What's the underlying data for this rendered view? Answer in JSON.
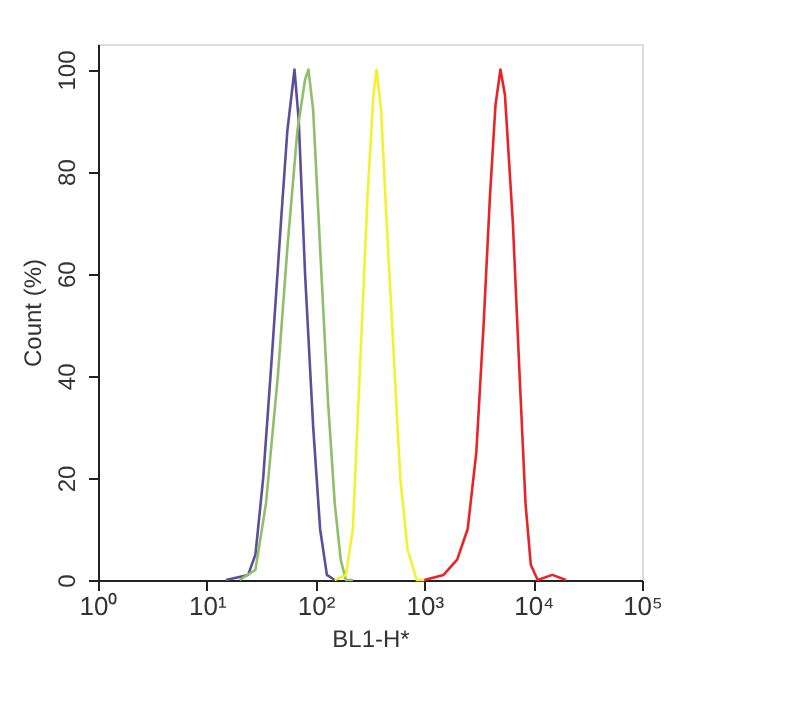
{
  "chart_data": {
    "type": "line",
    "xlabel": "BL1-H*",
    "ylabel": "Count (%)",
    "log": "x",
    "xlim": [
      1,
      100000
    ],
    "ylim": [
      0,
      105
    ],
    "xticks": [
      {
        "value": 1,
        "label": "10⁰"
      },
      {
        "value": 10,
        "label": "10¹"
      },
      {
        "value": 100,
        "label": "10²"
      },
      {
        "value": 1000,
        "label": "10³"
      },
      {
        "value": 10000,
        "label": "10⁴"
      },
      {
        "value": 100000,
        "label": "10⁵"
      }
    ],
    "yticks": [
      0,
      20,
      40,
      60,
      80,
      100
    ],
    "grid": false,
    "marker": "none",
    "line_style": "solid",
    "series": [
      {
        "color": "#5b4f9a",
        "x": [
          15,
          24,
          28,
          33,
          40,
          48,
          55,
          64,
          70,
          80,
          95,
          110,
          127,
          150
        ],
        "values": [
          0,
          1,
          5,
          20,
          45,
          70,
          88,
          100,
          90,
          60,
          30,
          10,
          1,
          0
        ]
      },
      {
        "color": "#8fbf6a",
        "x": [
          20,
          28,
          35,
          45,
          55,
          68,
          80,
          86,
          95,
          110,
          130,
          150,
          170,
          190,
          220
        ],
        "values": [
          0,
          2,
          15,
          40,
          65,
          88,
          98,
          100,
          92,
          65,
          35,
          15,
          4,
          0,
          0
        ]
      },
      {
        "color": "#f2f230",
        "x": [
          150,
          190,
          220,
          260,
          300,
          340,
          363,
          400,
          450,
          520,
          600,
          700,
          850,
          1000
        ],
        "values": [
          0,
          1,
          10,
          45,
          75,
          95,
          100,
          92,
          70,
          45,
          20,
          6,
          0,
          0
        ]
      },
      {
        "color": "#e8242b",
        "x": [
          1000,
          1500,
          2000,
          2500,
          3000,
          3500,
          4000,
          4500,
          5000,
          5500,
          6500,
          7500,
          8500,
          9500,
          11000,
          15000,
          20000
        ],
        "values": [
          0,
          1,
          4,
          10,
          25,
          50,
          75,
          93,
          100,
          95,
          70,
          40,
          15,
          3,
          0,
          1,
          0
        ]
      }
    ]
  }
}
